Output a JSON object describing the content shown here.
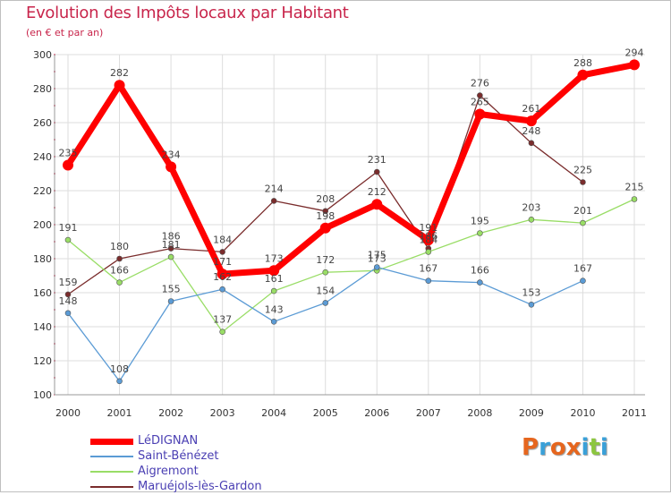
{
  "header": {
    "title": "Evolution des Impôts locaux par Habitant",
    "subtitle": "(en € et par an)"
  },
  "logo": {
    "text": "Proxiti",
    "letters": [
      "P",
      "r",
      "o",
      "x",
      "i",
      "t",
      "i"
    ],
    "colors": [
      "#e6661e",
      "#3aa0d8",
      "#e6661e",
      "#e6661e",
      "#3aa0d8",
      "#8cc63f",
      "#3aa0d8"
    ]
  },
  "chart_data": {
    "type": "line",
    "title": "Evolution des Impôts locaux par Habitant",
    "subtitle": "(en € et par an)",
    "xlabel": "",
    "ylabel": "",
    "ylim": [
      100,
      300
    ],
    "yticks": [
      100,
      120,
      140,
      160,
      180,
      200,
      220,
      240,
      260,
      280,
      300
    ],
    "categories": [
      "2000",
      "2001",
      "2002",
      "2003",
      "2004",
      "2005",
      "2006",
      "2007",
      "2008",
      "2009",
      "2010",
      "2011"
    ],
    "grid": true,
    "legend_position": "bottom-left",
    "series": [
      {
        "name": "LéDIGNAN",
        "color": "#ff0000",
        "values": [
          235,
          282,
          234,
          171,
          173,
          198,
          212,
          191,
          265,
          261,
          288,
          294
        ]
      },
      {
        "name": "Saint-Bénézet",
        "color": "#5b9bd5",
        "values": [
          148,
          108,
          155,
          162,
          143,
          154,
          175,
          167,
          166,
          153,
          167,
          null
        ]
      },
      {
        "name": "Aigremont",
        "color": "#99dd66",
        "values": [
          191,
          166,
          181,
          137,
          161,
          172,
          173,
          184,
          195,
          203,
          201,
          215
        ]
      },
      {
        "name": "Maruéjols-lès-Gardon",
        "color": "#7a2c2c",
        "values": [
          159,
          180,
          186,
          184,
          214,
          208,
          231,
          186,
          276,
          248,
          225,
          null
        ]
      }
    ]
  }
}
